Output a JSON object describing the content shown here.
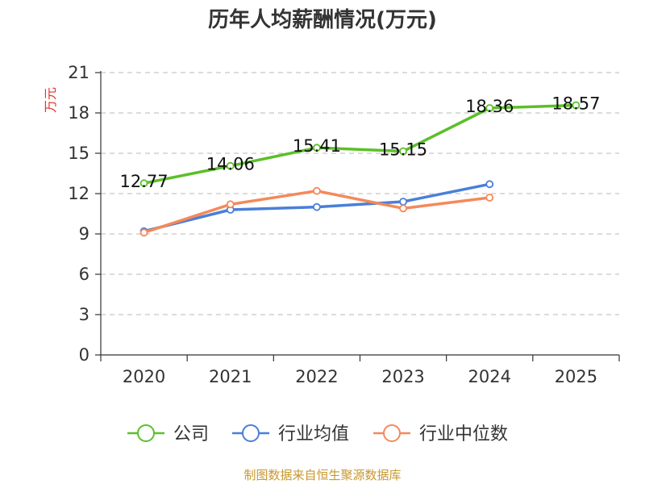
{
  "chart_data": {
    "type": "line",
    "title": "历年人均薪酬情况(万元)",
    "ylabel": "万元",
    "xlabel": "",
    "categories": [
      "2020",
      "2021",
      "2022",
      "2023",
      "2024",
      "2025"
    ],
    "ylim": [
      0,
      21
    ],
    "yticks": [
      0,
      3,
      6,
      9,
      12,
      15,
      18,
      21
    ],
    "grid": true,
    "legend_position": "bottom",
    "series": [
      {
        "name": "公司",
        "color": "#5cbf2a",
        "values": [
          12.77,
          14.06,
          15.41,
          15.15,
          18.36,
          18.57
        ],
        "labels": [
          "12.77",
          "14.06",
          "15.41",
          "15.15",
          "18.36",
          "18.57"
        ]
      },
      {
        "name": "行业均值",
        "color": "#4a7fd8",
        "values": [
          9.2,
          10.8,
          11.0,
          11.4,
          12.7,
          null
        ]
      },
      {
        "name": "行业中位数",
        "color": "#f4895a",
        "values": [
          9.1,
          11.2,
          12.2,
          10.9,
          11.7,
          null
        ]
      }
    ],
    "source": "制图数据来自恒生聚源数据库"
  }
}
